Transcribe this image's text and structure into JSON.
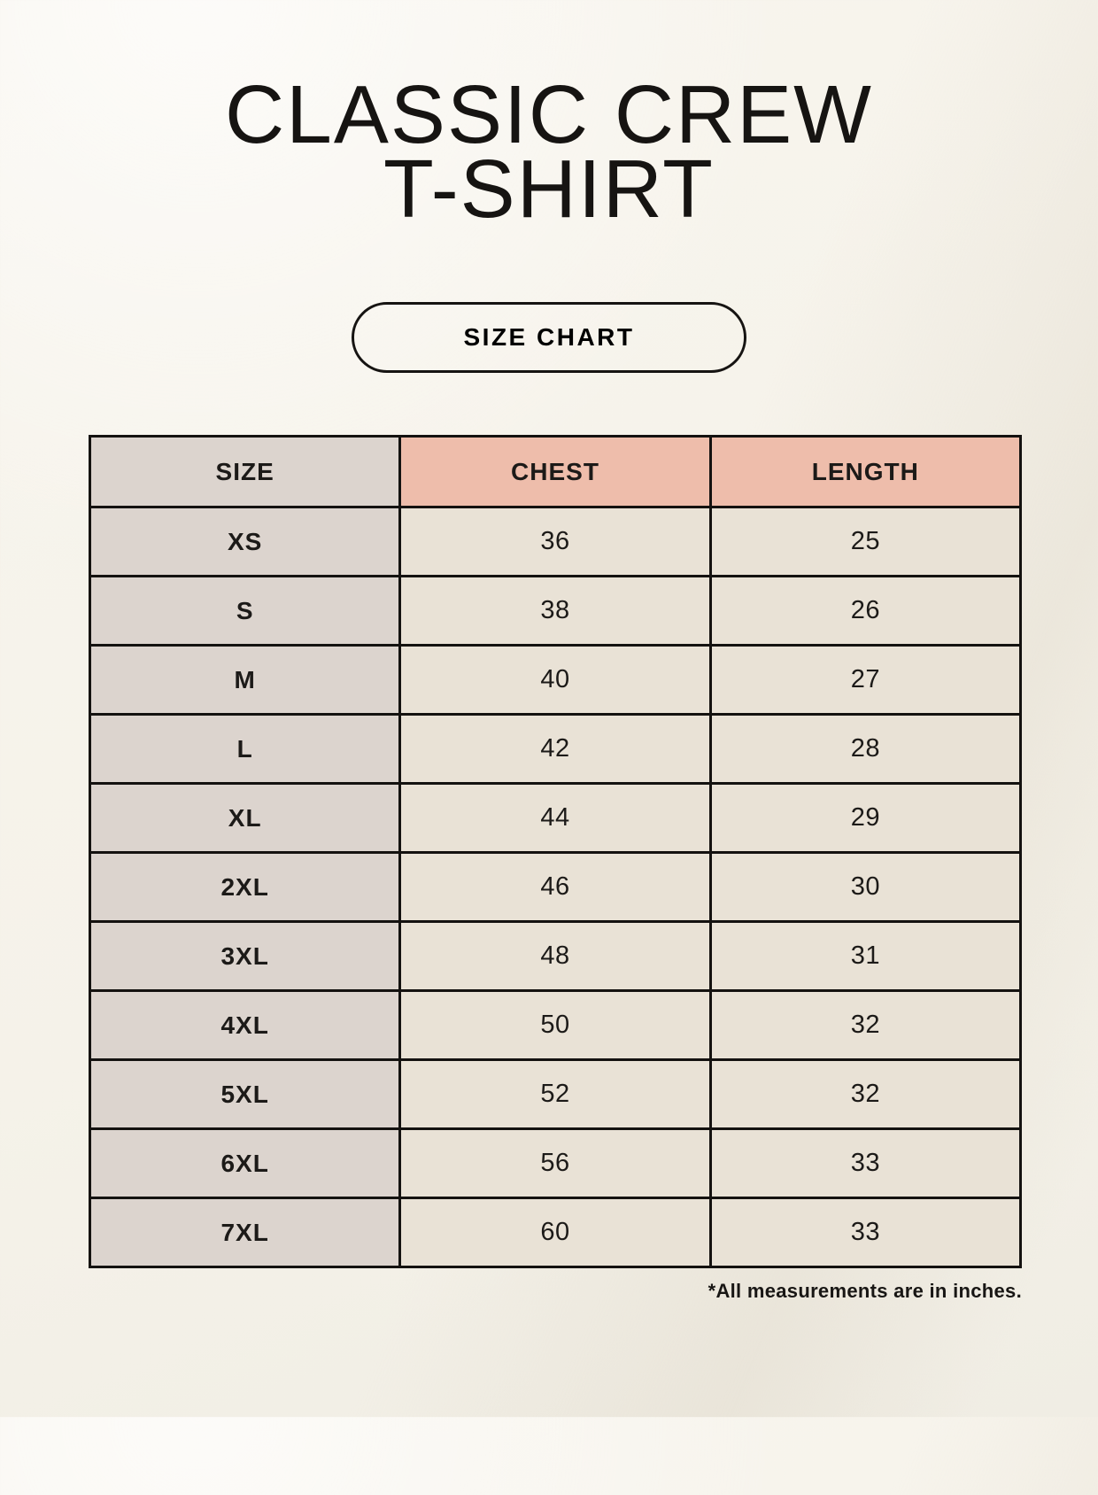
{
  "page": {
    "title_line1": "CLASSIC CREW",
    "title_line2": "T-SHIRT",
    "badge_label": "SIZE CHART",
    "footnote": "*All measurements are in inches."
  },
  "colors": {
    "background": "#f7f4ed",
    "table_border": "#141210",
    "size_column_bg": "#dcd4ce",
    "header_accent_bg": "#eebdab",
    "data_cell_bg": "#e9e2d6",
    "text": "#1c1a18"
  },
  "chart_data": {
    "type": "table",
    "title": "CLASSIC CREW T-SHIRT — SIZE CHART",
    "units": "inches",
    "columns": [
      "SIZE",
      "CHEST",
      "LENGTH"
    ],
    "rows": [
      {
        "size": "XS",
        "chest": 36,
        "length": 25
      },
      {
        "size": "S",
        "chest": 38,
        "length": 26
      },
      {
        "size": "M",
        "chest": 40,
        "length": 27
      },
      {
        "size": "L",
        "chest": 42,
        "length": 28
      },
      {
        "size": "XL",
        "chest": 44,
        "length": 29
      },
      {
        "size": "2XL",
        "chest": 46,
        "length": 30
      },
      {
        "size": "3XL",
        "chest": 48,
        "length": 31
      },
      {
        "size": "4XL",
        "chest": 50,
        "length": 32
      },
      {
        "size": "5XL",
        "chest": 52,
        "length": 32
      },
      {
        "size": "6XL",
        "chest": 56,
        "length": 33
      },
      {
        "size": "7XL",
        "chest": 60,
        "length": 33
      }
    ]
  }
}
